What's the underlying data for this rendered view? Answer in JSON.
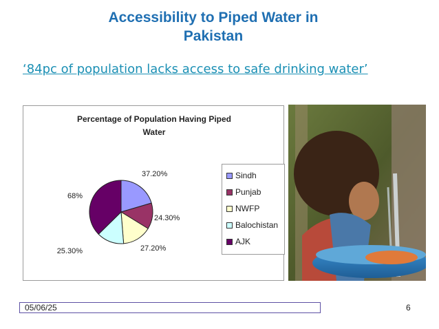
{
  "slide": {
    "title_lines": [
      "Accessibility to Piped Water in",
      "Pakistan"
    ],
    "quote": "‘84pc of population lacks access to safe drinking water’",
    "footer_date": "05/06/25",
    "page_number": "6"
  },
  "chart_data": {
    "type": "pie",
    "title_lines": [
      "Percentage of Population Having Piped",
      "Water"
    ],
    "categories": [
      "Sindh",
      "Punjab",
      "NWFP",
      "Balochistan",
      "AJK"
    ],
    "values": [
      37.2,
      24.3,
      27.2,
      25.3,
      68
    ],
    "value_labels": [
      "37.20%",
      "24.30%",
      "27.20%",
      "25.30%",
      "68%"
    ],
    "colors": [
      "#9999ff",
      "#993366",
      "#ffffcc",
      "#ccffff",
      "#660066"
    ],
    "legend_position": "right"
  },
  "photo": {
    "icon": "child-drinking-water-photo"
  }
}
